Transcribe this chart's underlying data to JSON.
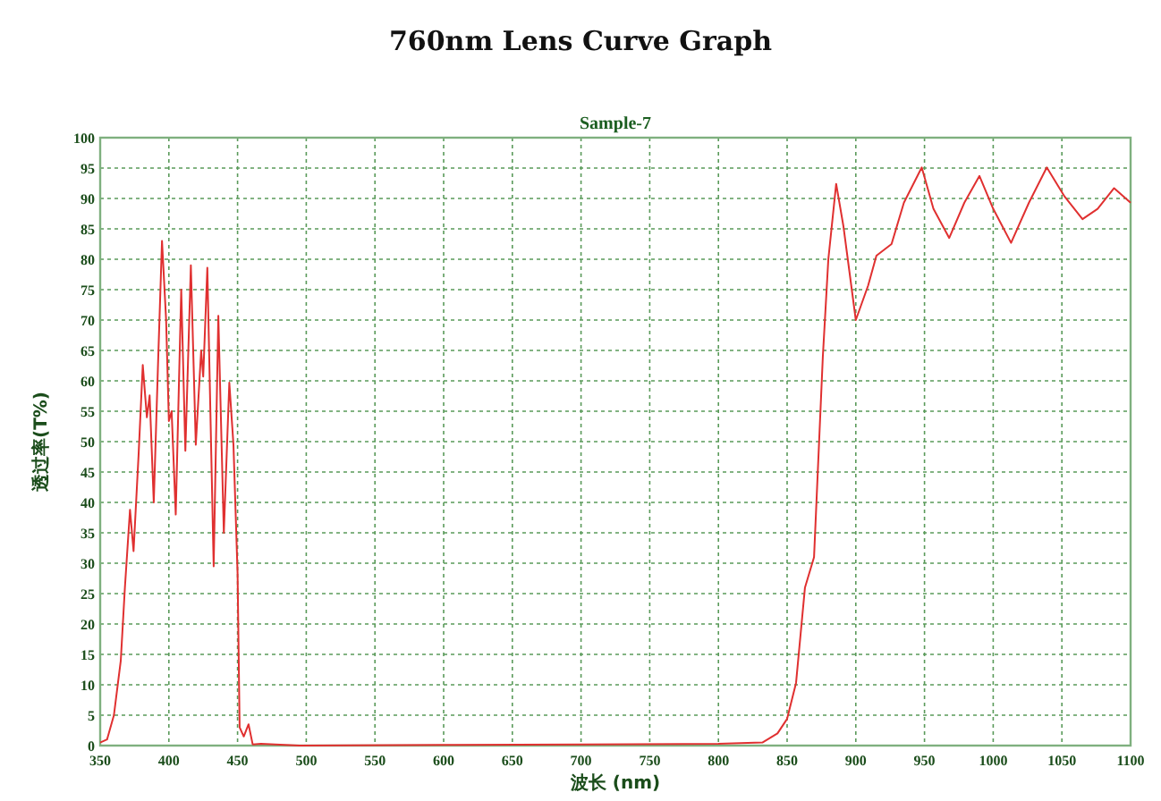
{
  "chart_data": {
    "type": "line",
    "title": "760nm Lens Curve Graph",
    "subtitle": "Sample-7",
    "xlabel": "波长 (nm)",
    "ylabel": "透过率(T%)",
    "xlim": [
      350,
      1100
    ],
    "xticks": [
      350,
      400,
      450,
      500,
      550,
      600,
      650,
      700,
      750,
      800,
      850,
      900,
      950,
      1000,
      1050,
      1100
    ],
    "ylim": [
      0,
      100
    ],
    "yticks": [
      0,
      5,
      10,
      15,
      20,
      25,
      30,
      35,
      40,
      45,
      50,
      55,
      60,
      65,
      70,
      75,
      80,
      85,
      90,
      95,
      100
    ],
    "grid": true,
    "line_style": "solid",
    "marker": "none",
    "series": [
      {
        "color": "#e03030",
        "x": [
          350,
          355,
          360,
          365,
          368,
          371.7,
          374.3,
          378,
          381,
          384,
          386,
          389,
          392,
          395,
          398,
          400,
          402,
          405,
          409,
          412,
          416,
          419.6,
          423.5,
          425,
          428,
          432.6,
          436,
          440,
          444,
          447,
          450,
          451.5,
          454.5,
          458,
          461,
          467,
          495,
          600,
          700,
          800,
          832,
          843,
          850,
          856.5,
          863,
          869.6,
          876,
          880,
          885.7,
          891,
          900,
          909,
          915,
          926,
          935,
          948,
          956.5,
          968,
          979,
          990,
          1000,
          1013,
          1026,
          1039,
          1052,
          1065,
          1076,
          1088,
          1100
        ],
        "values": [
          0.5,
          1,
          5,
          14,
          26,
          38.8,
          32,
          48,
          62.6,
          54,
          57.6,
          40,
          62,
          83,
          70,
          53.4,
          55,
          38,
          75,
          48.5,
          79,
          49.5,
          65,
          60.7,
          78.6,
          29.5,
          70.7,
          35,
          59.7,
          49.5,
          28.4,
          3,
          1.5,
          3.5,
          0.2,
          0.3,
          0,
          0.1,
          0.2,
          0.3,
          0.5,
          2,
          4.4,
          10.3,
          26,
          31,
          64,
          80,
          92.4,
          85.4,
          70,
          75.7,
          80.6,
          82.5,
          89.3,
          95.1,
          88.3,
          83.5,
          89.3,
          93.7,
          88.3,
          82.7,
          89.3,
          95.1,
          90.3,
          86.6,
          88.3,
          91.7,
          89.3
        ]
      }
    ]
  }
}
